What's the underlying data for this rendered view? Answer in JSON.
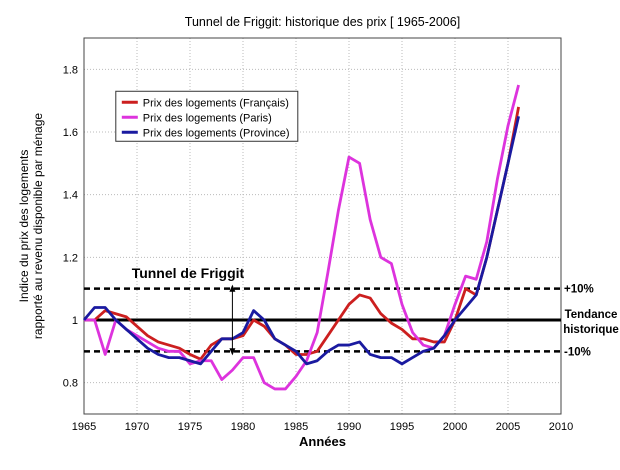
{
  "chart_data": {
    "type": "line",
    "title": "Tunnel de Friggit: historique des prix [ 1965-2006]",
    "xlabel": "Années",
    "ylabel": [
      "Indice du prix des logements",
      "rapporté au revenu disponible par ménage"
    ],
    "xlim": [
      1965,
      2010
    ],
    "ylim": [
      0.7,
      1.9
    ],
    "xticks": [
      1965,
      1970,
      1975,
      1980,
      1985,
      1990,
      1995,
      2000,
      2005,
      2010
    ],
    "yticks": [
      0.8,
      1,
      1.2,
      1.4,
      1.6,
      1.8
    ],
    "ytick_labels": [
      "0.8",
      "1",
      "1.2",
      "1.4",
      "1.6",
      "1.8"
    ],
    "grid": true,
    "legend_position": "top-left",
    "x": [
      1965,
      1966,
      1967,
      1968,
      1969,
      1970,
      1971,
      1972,
      1973,
      1974,
      1975,
      1976,
      1977,
      1978,
      1979,
      1980,
      1981,
      1982,
      1983,
      1984,
      1985,
      1986,
      1987,
      1988,
      1989,
      1990,
      1991,
      1992,
      1993,
      1994,
      1995,
      1996,
      1997,
      1998,
      1999,
      2000,
      2001,
      2002,
      2003,
      2004,
      2005,
      2006
    ],
    "series": [
      {
        "name": "Prix des logements (Français)",
        "color": "#cc1f1f",
        "values": [
          1.0,
          1.0,
          1.03,
          1.02,
          1.01,
          0.98,
          0.95,
          0.93,
          0.92,
          0.91,
          0.89,
          0.875,
          0.92,
          0.94,
          0.94,
          0.95,
          1.0,
          0.98,
          0.94,
          0.92,
          0.89,
          0.89,
          0.9,
          0.95,
          1.0,
          1.05,
          1.08,
          1.07,
          1.02,
          0.99,
          0.97,
          0.94,
          0.94,
          0.93,
          0.93,
          1.0,
          1.1,
          1.08,
          1.2,
          1.35,
          1.5,
          1.68
        ]
      },
      {
        "name": "Prix des logements (Paris)",
        "color": "#dd33dd",
        "values": [
          1.0,
          1.0,
          0.89,
          1.0,
          0.97,
          0.95,
          0.93,
          0.91,
          0.9,
          0.9,
          0.86,
          0.87,
          0.87,
          0.81,
          0.84,
          0.88,
          0.88,
          0.8,
          0.78,
          0.78,
          0.82,
          0.87,
          0.96,
          1.15,
          1.35,
          1.52,
          1.5,
          1.32,
          1.2,
          1.18,
          1.05,
          0.96,
          0.92,
          0.91,
          0.95,
          1.05,
          1.14,
          1.13,
          1.25,
          1.45,
          1.62,
          1.75
        ]
      },
      {
        "name": "Prix des logements (Province)",
        "color": "#1a1aa0",
        "values": [
          1.0,
          1.04,
          1.04,
          1.0,
          0.97,
          0.94,
          0.91,
          0.89,
          0.88,
          0.88,
          0.87,
          0.86,
          0.9,
          0.94,
          0.94,
          0.96,
          1.03,
          1.0,
          0.94,
          0.92,
          0.9,
          0.86,
          0.87,
          0.9,
          0.92,
          0.92,
          0.93,
          0.89,
          0.88,
          0.88,
          0.86,
          0.88,
          0.9,
          0.91,
          0.95,
          1.0,
          1.04,
          1.08,
          1.2,
          1.35,
          1.5,
          1.65
        ]
      }
    ],
    "reference_lines": [
      {
        "y": 1.1,
        "style": "dashed",
        "label": "+10%"
      },
      {
        "y": 1.0,
        "style": "solid",
        "label": "Tendance historique",
        "label_lines": [
          "Tendance",
          "historique"
        ]
      },
      {
        "y": 0.9,
        "style": "dashed",
        "label": "-10%"
      }
    ],
    "annotations": [
      {
        "text": "Tunnel de Friggit",
        "x": 1975,
        "y": 1.15,
        "arrow_x": 1979,
        "arrow_y": [
          0.9,
          1.1
        ]
      }
    ]
  }
}
